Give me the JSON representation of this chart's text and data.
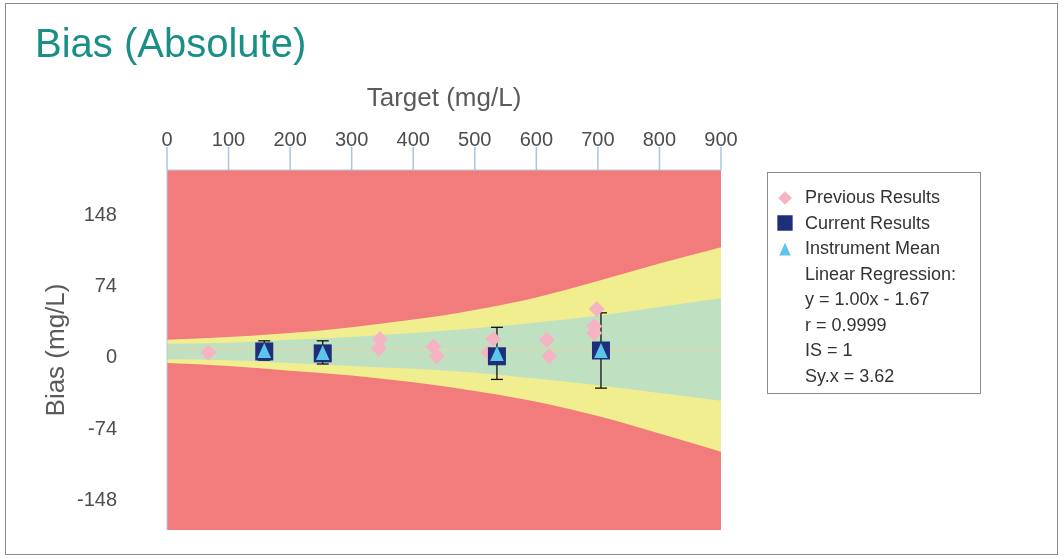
{
  "chart_data": {
    "type": "scatter",
    "title": "Bias (Absolute)",
    "xlabel": "Target (mg/L)",
    "ylabel": "Bias (mg/L)",
    "xlim": [
      0,
      900
    ],
    "xticks": [
      0,
      100,
      200,
      300,
      400,
      500,
      600,
      700,
      800,
      900
    ],
    "ylim": [
      -180,
      193
    ],
    "yticks": [
      -148,
      -74,
      0,
      74,
      148
    ],
    "legend": "right",
    "bands": [
      {
        "axis": "y",
        "from": -180,
        "to": 193,
        "color": "#f27b7b"
      }
    ],
    "ref_lines": [
      {
        "axis": "y",
        "value": 7,
        "color": "#ecd3a6"
      }
    ],
    "series": [
      {
        "type": "area",
        "color": "#f1ee8f",
        "x": [
          0,
          100,
          200,
          300,
          400,
          500,
          600,
          700,
          800,
          900
        ],
        "values": [
          17,
          20,
          24,
          30,
          38,
          48,
          61,
          78,
          96,
          113
        ]
      },
      {
        "type": "area",
        "color": "#f1ee8f",
        "x": [
          0,
          100,
          200,
          300,
          400,
          500,
          600,
          700,
          800,
          900
        ],
        "values": [
          -7,
          -10,
          -15,
          -20,
          -27,
          -36,
          -47,
          -62,
          -80,
          -99
        ]
      },
      {
        "type": "area",
        "color": "#bfe1c1",
        "x": [
          0,
          100,
          200,
          300,
          400,
          500,
          600,
          700,
          800,
          900
        ],
        "values": [
          13,
          14,
          17,
          20,
          24,
          29,
          35,
          42,
          51,
          60
        ]
      },
      {
        "type": "area",
        "color": "#bfe1c1",
        "x": [
          0,
          100,
          200,
          300,
          400,
          500,
          600,
          700,
          800,
          900
        ],
        "values": [
          -3,
          -4,
          -7,
          -10,
          -13,
          -17,
          -23,
          -30,
          -38,
          -46
        ]
      },
      {
        "name": "Previous Results",
        "marker": "diamond",
        "color": "#f6b3c3",
        "x": [
          67,
          344,
          346,
          433,
          438,
          522,
          530,
          617,
          621,
          694,
          694,
          698
        ],
        "values": [
          4,
          8,
          18,
          10,
          0,
          4,
          18,
          17,
          0,
          24,
          31,
          49
        ]
      },
      {
        "name": "Current Results",
        "marker": "square",
        "color": "#1f2e7a",
        "x": [
          158,
          253,
          536,
          705
        ],
        "values": [
          5,
          3,
          0,
          6
        ]
      },
      {
        "name": "Instrument Mean",
        "marker": "triangle",
        "color": "#5cc6ea",
        "x": [
          158,
          253,
          536,
          705
        ],
        "values": [
          6,
          4,
          3,
          6
        ],
        "errors": [
          10,
          12,
          27,
          39
        ]
      }
    ],
    "annotations": [
      "Linear Regression:",
      "y = 1.00x - 1.67",
      "r = 0.9999",
      "IS = 1",
      "Sy.x = 3.62"
    ]
  }
}
